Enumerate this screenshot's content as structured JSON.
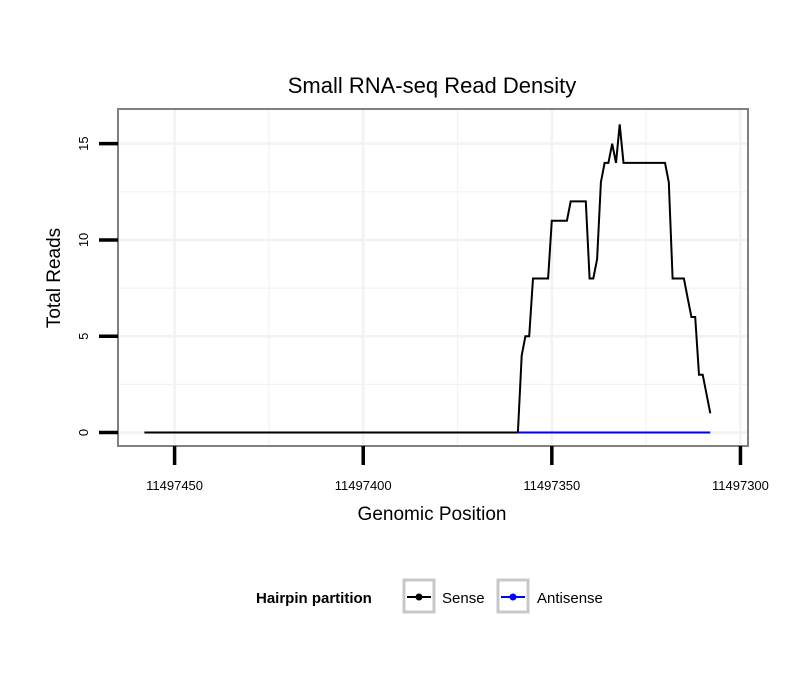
{
  "chart_data": {
    "type": "line",
    "title": "Small RNA-seq Read Density",
    "xlabel": "Genomic Position",
    "ylabel": "Total Reads",
    "xlim": [
      11497465,
      11497298
    ],
    "x_reversed": true,
    "ylim": [
      -0.7,
      16.8
    ],
    "xticks": [
      11497450,
      11497400,
      11497350,
      11497300
    ],
    "xtick_labels": [
      "11497450",
      "11497400",
      "11497350",
      "11497300"
    ],
    "yticks": [
      0,
      5,
      10,
      15
    ],
    "ytick_labels": [
      "0",
      "5",
      "10",
      "15"
    ],
    "grid": true,
    "legend": {
      "title": "Hairpin partition",
      "placement": "bottom",
      "entries": [
        "Sense",
        "Antisense"
      ]
    },
    "series": [
      {
        "name": "Sense",
        "color": "#000000",
        "x": [
          11497458,
          11497359,
          11497358,
          11497357,
          11497356,
          11497355,
          11497354,
          11497351,
          11497350,
          11497346,
          11497345,
          11497341,
          11497340,
          11497339,
          11497338,
          11497337,
          11497336,
          11497335,
          11497334,
          11497333,
          11497332,
          11497331,
          11497330,
          11497329,
          11497320,
          11497319,
          11497318,
          11497315,
          11497314,
          11497313,
          11497312,
          11497311,
          11497310,
          11497308
        ],
        "values": [
          0,
          0,
          4,
          5,
          5,
          8,
          8,
          8,
          11,
          11,
          12,
          12,
          8,
          8,
          9,
          13,
          14,
          14,
          15,
          14,
          16,
          14,
          14,
          14,
          14,
          13,
          8,
          8,
          7,
          6,
          6,
          3,
          3,
          1
        ]
      },
      {
        "name": "Antisense",
        "color": "#0000ff",
        "x": [
          11497359,
          11497308
        ],
        "values": [
          0,
          0
        ]
      }
    ]
  }
}
